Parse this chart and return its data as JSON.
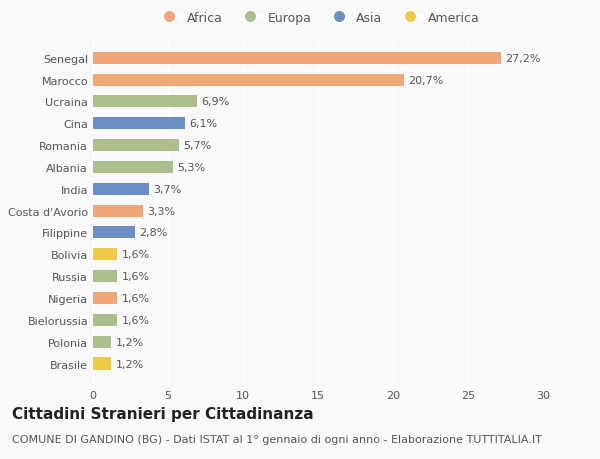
{
  "countries": [
    "Brasile",
    "Polonia",
    "Bielorussia",
    "Nigeria",
    "Russia",
    "Bolivia",
    "Filippine",
    "Costa d'Avorio",
    "India",
    "Albania",
    "Romania",
    "Cina",
    "Ucraina",
    "Marocco",
    "Senegal"
  ],
  "values": [
    1.2,
    1.2,
    1.6,
    1.6,
    1.6,
    1.6,
    2.8,
    3.3,
    3.7,
    5.3,
    5.7,
    6.1,
    6.9,
    20.7,
    27.2
  ],
  "labels": [
    "1,2%",
    "1,2%",
    "1,6%",
    "1,6%",
    "1,6%",
    "1,6%",
    "2,8%",
    "3,3%",
    "3,7%",
    "5,3%",
    "5,7%",
    "6,1%",
    "6,9%",
    "20,7%",
    "27,2%"
  ],
  "continents": [
    "America",
    "Europa",
    "Europa",
    "Africa",
    "Europa",
    "America",
    "Asia",
    "Africa",
    "Asia",
    "Europa",
    "Europa",
    "Asia",
    "Europa",
    "Africa",
    "Africa"
  ],
  "continent_colors": {
    "Africa": "#F0A878",
    "Europa": "#ABBE8C",
    "Asia": "#6B8EC4",
    "America": "#F0C84A"
  },
  "legend_order": [
    "Africa",
    "Europa",
    "Asia",
    "America"
  ],
  "title": "Cittadini Stranieri per Cittadinanza",
  "subtitle": "COMUNE DI GANDINO (BG) - Dati ISTAT al 1° gennaio di ogni anno - Elaborazione TUTTITALIA.IT",
  "xlim": [
    0,
    30
  ],
  "xticks": [
    0,
    5,
    10,
    15,
    20,
    25,
    30
  ],
  "background_color": "#f9f9f9",
  "bar_height": 0.55,
  "title_fontsize": 11,
  "subtitle_fontsize": 8,
  "label_fontsize": 8,
  "tick_fontsize": 8,
  "legend_fontsize": 9
}
